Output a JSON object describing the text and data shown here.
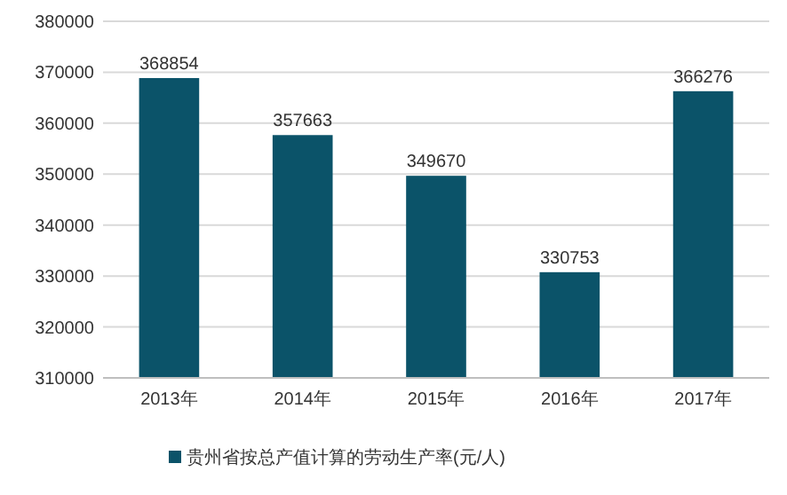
{
  "chart_data": {
    "type": "bar",
    "categories": [
      "2013年",
      "2014年",
      "2015年",
      "2016年",
      "2017年"
    ],
    "series": [
      {
        "name": "贵州省按总产值计算的劳动生产率(元/人)",
        "color": "#0b5369",
        "values": [
          368854,
          357663,
          349670,
          330753,
          366276
        ]
      }
    ],
    "ylim": [
      310000,
      380000
    ],
    "yticks": [
      310000,
      320000,
      330000,
      340000,
      350000,
      360000,
      370000,
      380000
    ],
    "grid": "y",
    "legend": "bottom",
    "data_labels": true
  }
}
